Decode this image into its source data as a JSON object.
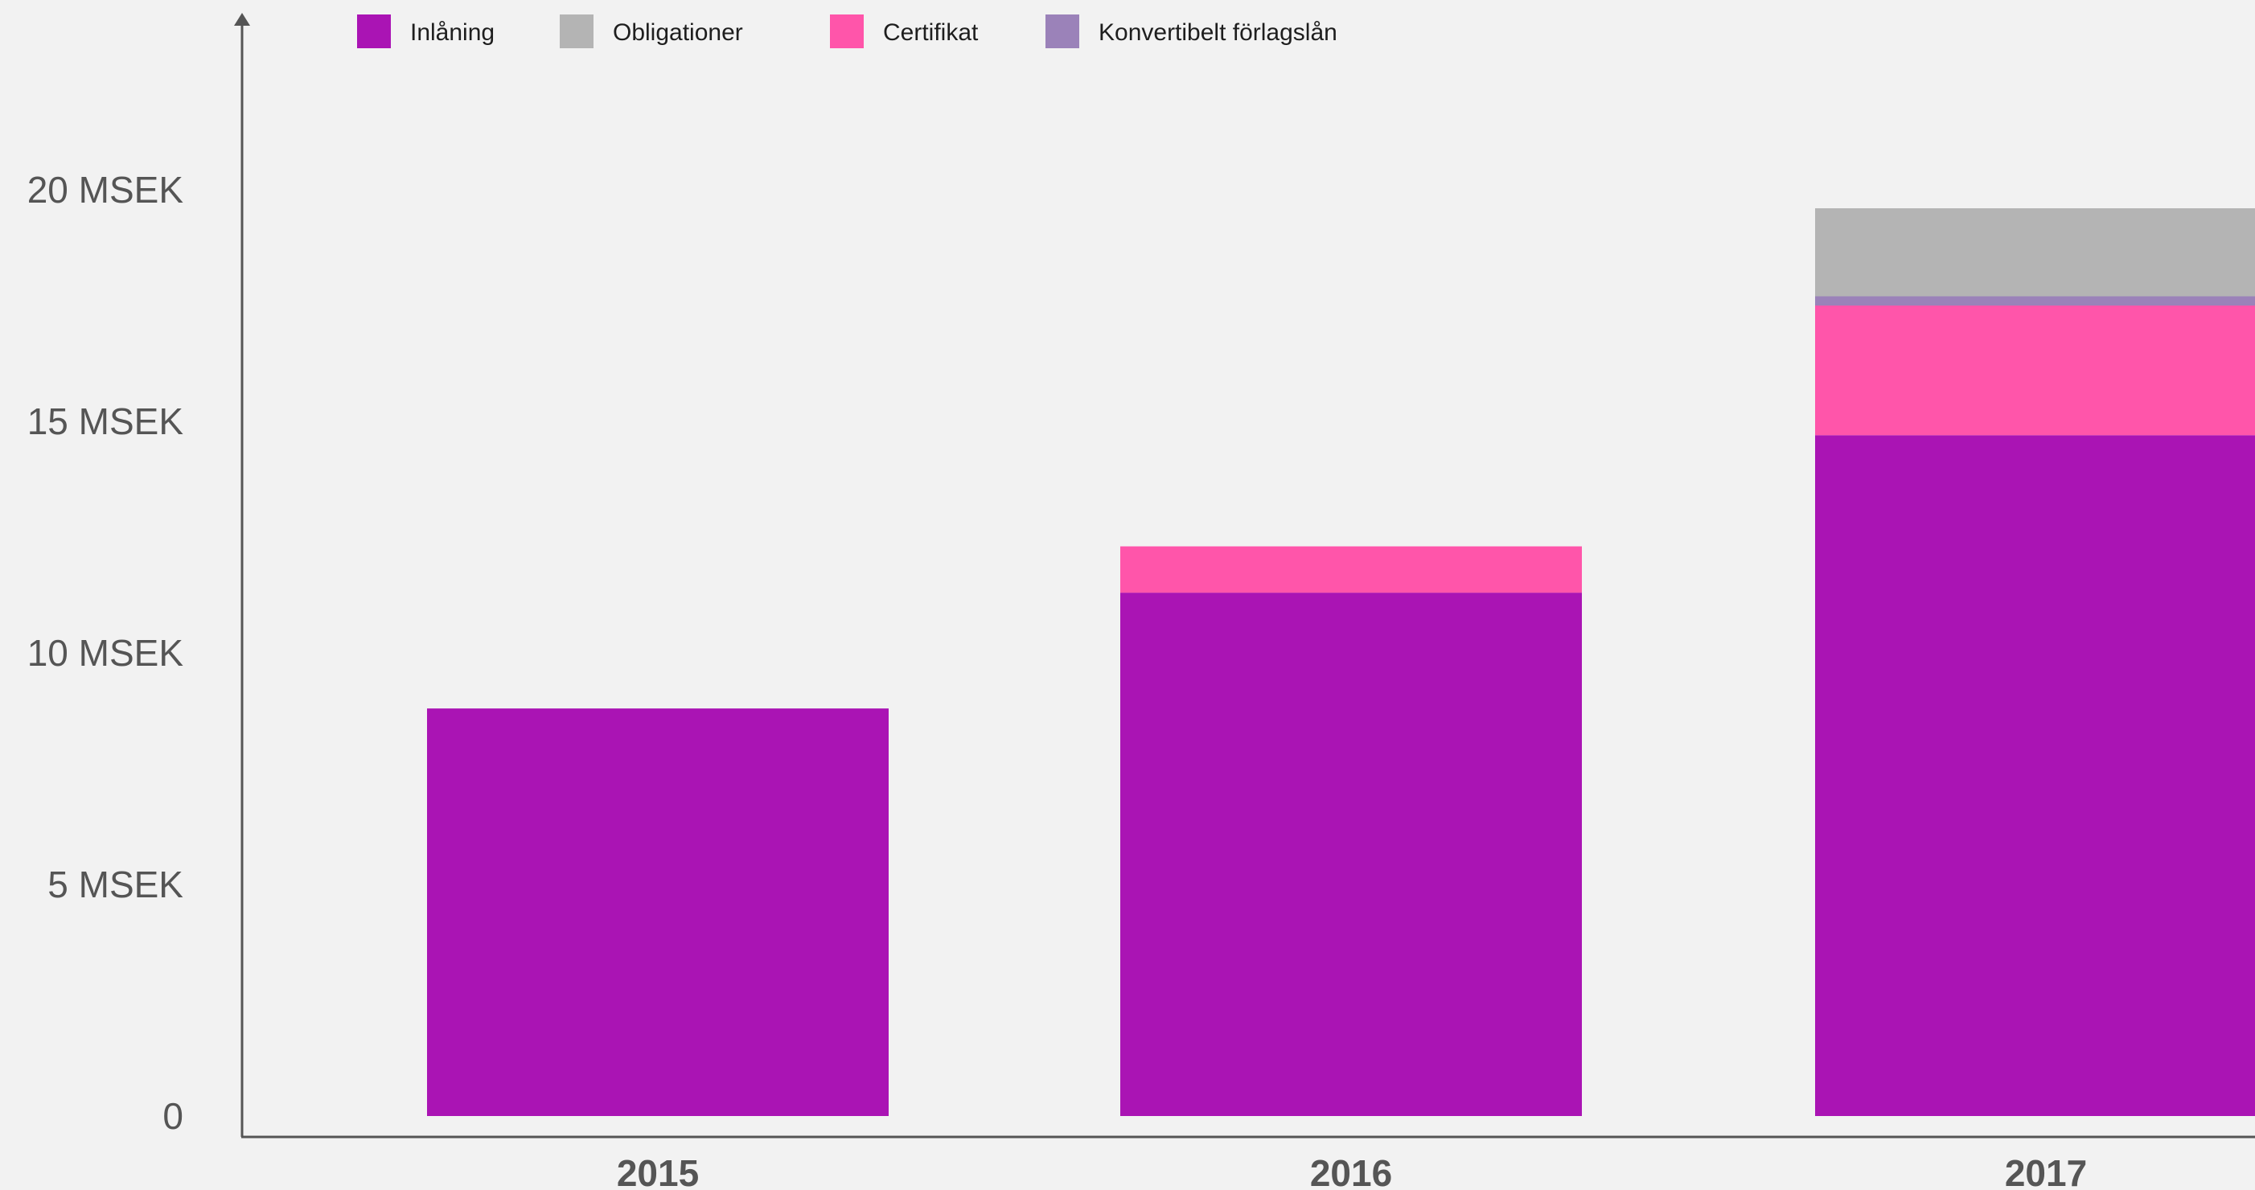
{
  "chart_data": {
    "type": "bar",
    "stacked": true,
    "categories": [
      "2015",
      "2016",
      "2017"
    ],
    "series": [
      {
        "name": "Inlåning",
        "color": "#aa14b4",
        "values": [
          8.8,
          11.3,
          14.7
        ]
      },
      {
        "name": "Obligationer",
        "color": "#b4b4b4",
        "values": [
          0,
          0,
          1.9
        ]
      },
      {
        "name": "Certifikat",
        "color": "#ff55aa",
        "values": [
          0,
          1.0,
          2.8
        ]
      },
      {
        "name": "Konvertibelt förlagslån",
        "color": "#9b82b9",
        "values": [
          0,
          0,
          0.2
        ]
      }
    ],
    "stack_order": [
      "Inlåning",
      "Certifikat",
      "Konvertibelt förlagslån",
      "Obligationer"
    ],
    "y_ticks": [
      0,
      5,
      10,
      15,
      20
    ],
    "y_tick_labels": [
      "0",
      "5 MSEK",
      "10 MSEK",
      "15 MSEK",
      "20 MSEK"
    ],
    "ylim": [
      0,
      22
    ],
    "legend": "top-left",
    "grid": false,
    "title": "",
    "xlabel": "",
    "ylabel": ""
  }
}
